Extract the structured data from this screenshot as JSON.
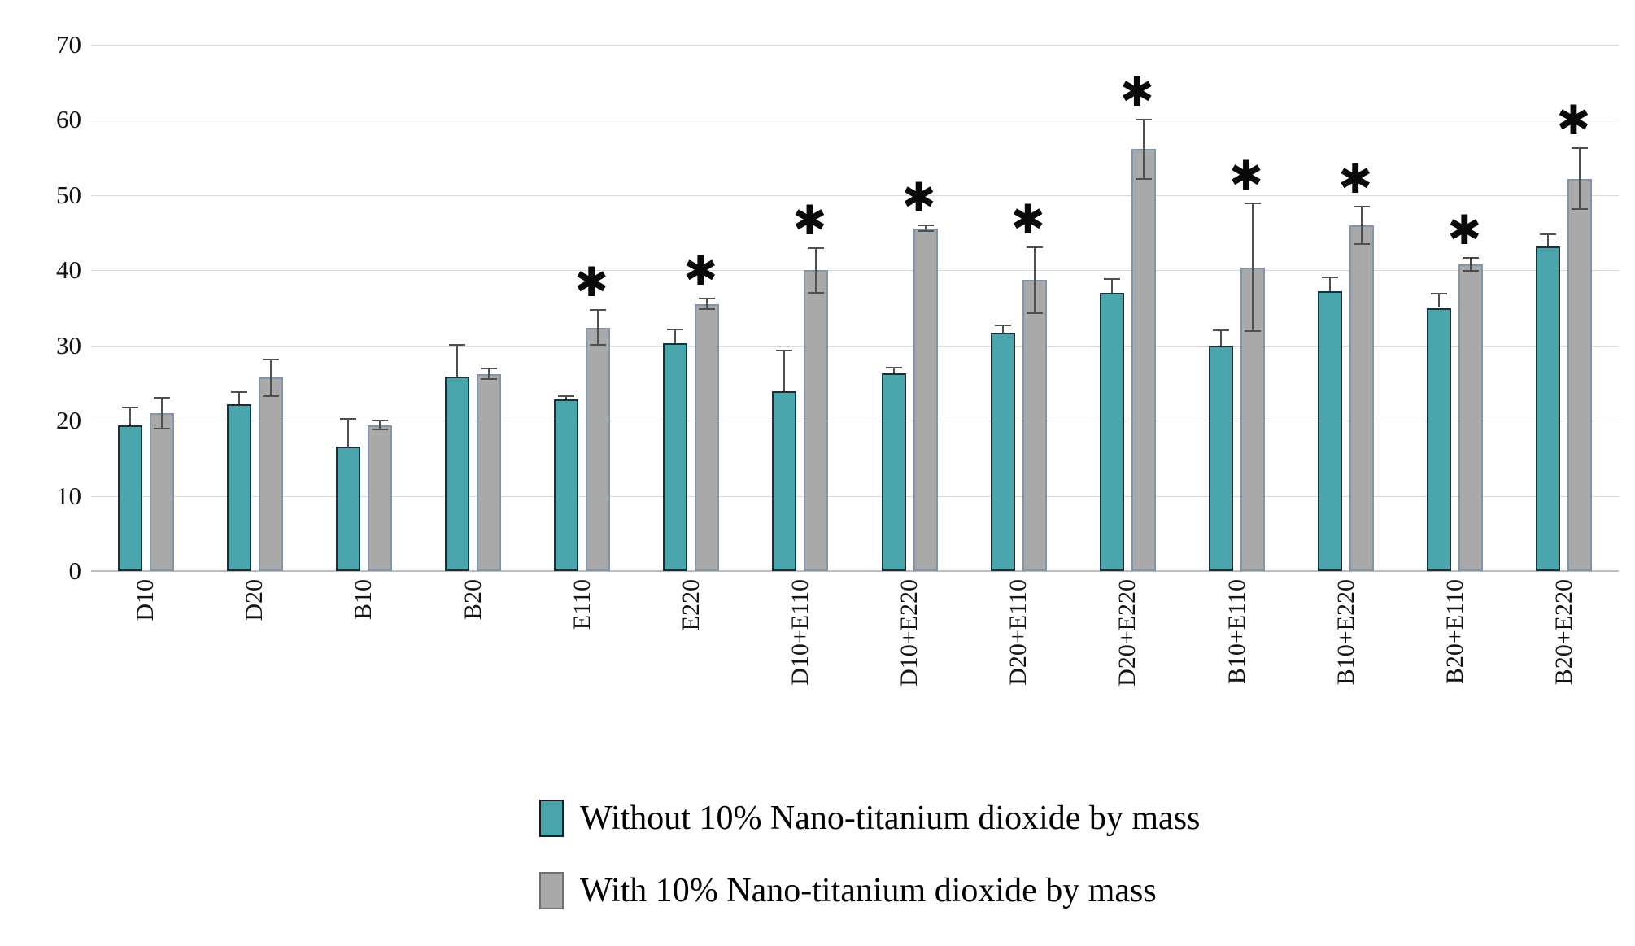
{
  "chart_data": {
    "type": "bar",
    "title": "",
    "xlabel": "",
    "ylabel": "",
    "ylim": [
      0,
      70
    ],
    "yticks": [
      0,
      10,
      20,
      30,
      40,
      50,
      60,
      70
    ],
    "grid": true,
    "legend_position": "bottom-center",
    "categories": [
      "D10",
      "D20",
      "B10",
      "B20",
      "E110",
      "E220",
      "D10+E110",
      "D10+E220",
      "D20+E110",
      "D20+E220",
      "B10+E110",
      "B10+E220",
      "B20+E110",
      "B20+E220"
    ],
    "series": [
      {
        "name": "Without 10% Nano-titanium dioxide by mass",
        "color": "#4ba5ac",
        "border_color": "#14333b",
        "values": [
          19.4,
          22.2,
          16.6,
          25.9,
          22.8,
          30.3,
          23.9,
          26.3,
          31.7,
          37.0,
          30.0,
          37.2,
          35.0,
          43.2
        ],
        "errors": [
          2.5,
          1.7,
          3.7,
          4.3,
          0.6,
          1.9,
          5.5,
          0.9,
          1.1,
          2.0,
          2.1,
          2.0,
          2.0,
          1.7
        ]
      },
      {
        "name": "With 10% Nano-titanium dioxide by mass",
        "color": "#a9a9a9",
        "border_color": "#8094ab",
        "values": [
          21.0,
          25.7,
          19.4,
          26.2,
          32.4,
          35.5,
          40.0,
          45.6,
          38.7,
          56.1,
          40.4,
          46.0,
          40.8,
          52.2
        ],
        "errors": [
          2.2,
          2.5,
          0.7,
          0.8,
          2.4,
          0.8,
          3.1,
          0.5,
          4.5,
          4.1,
          8.6,
          2.6,
          1.0,
          4.2
        ]
      }
    ],
    "significance_marker": "✱",
    "significant": [
      false,
      false,
      false,
      false,
      true,
      true,
      true,
      true,
      true,
      true,
      true,
      true,
      true,
      true
    ]
  }
}
